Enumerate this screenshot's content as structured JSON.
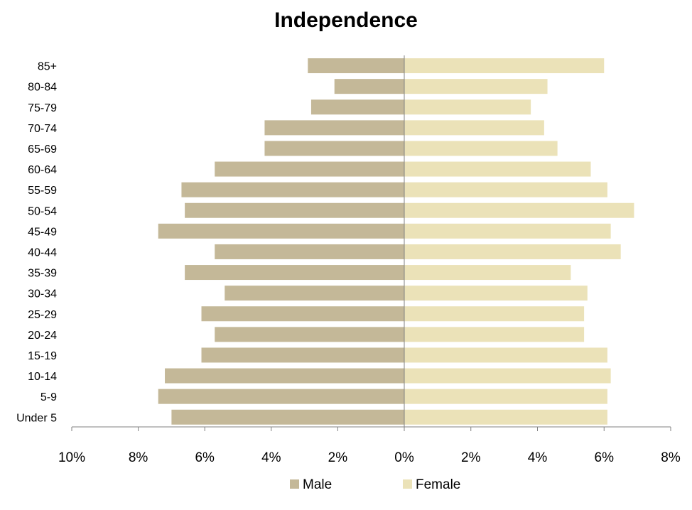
{
  "chart_data": {
    "type": "bar",
    "orientation": "horizontal",
    "subtype": "population-pyramid",
    "title": "Independence",
    "categories": [
      "85+",
      "80-84",
      "75-79",
      "70-74",
      "65-69",
      "60-64",
      "55-59",
      "50-54",
      "45-49",
      "40-44",
      "35-39",
      "30-34",
      "25-29",
      "20-24",
      "15-19",
      "10-14",
      "5-9",
      "Under 5"
    ],
    "series": [
      {
        "name": "Male",
        "color": "#c4b898",
        "values": [
          2.9,
          2.1,
          2.8,
          4.2,
          4.2,
          5.7,
          6.7,
          6.6,
          7.4,
          5.7,
          6.6,
          5.4,
          6.1,
          5.7,
          6.1,
          7.2,
          7.4,
          7.0
        ]
      },
      {
        "name": "Female",
        "color": "#ebe2b8",
        "values": [
          6.0,
          4.3,
          3.8,
          4.2,
          4.6,
          5.6,
          6.1,
          6.9,
          6.2,
          6.5,
          5.0,
          5.5,
          5.4,
          5.4,
          6.1,
          6.2,
          6.1,
          6.1
        ]
      }
    ],
    "x_ticks": [
      "10%",
      "8%",
      "6%",
      "4%",
      "2%",
      "0%",
      "2%",
      "4%",
      "6%",
      "8%"
    ],
    "x_range_left": 10,
    "x_range_right": 8,
    "legend_position": "bottom",
    "grid": false
  }
}
